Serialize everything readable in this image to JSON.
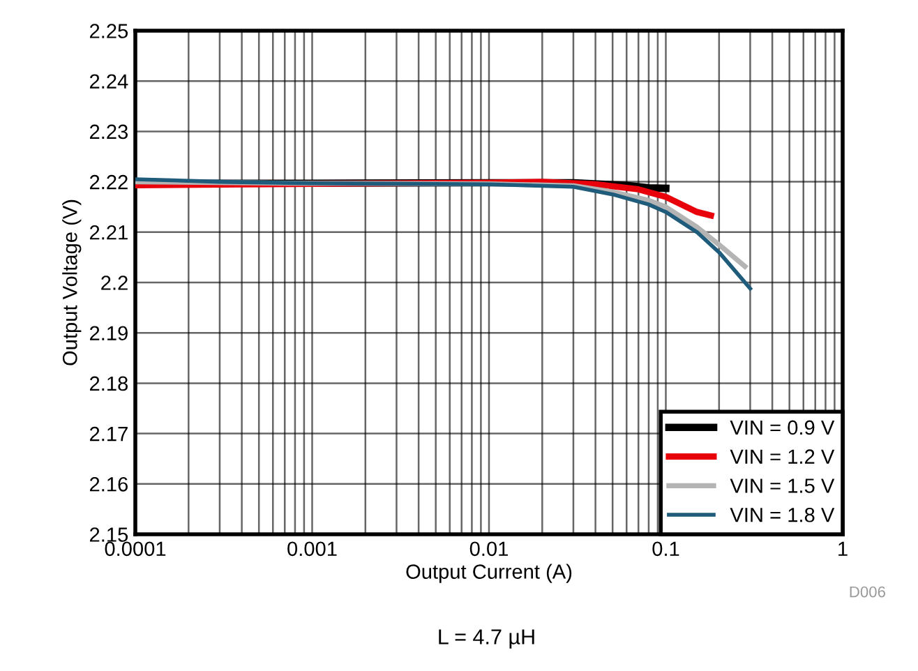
{
  "chart_data": {
    "type": "line",
    "xlabel": "Output Current (A)",
    "ylabel": "Output Voltage (V)",
    "log": "x",
    "grid": true,
    "legend": "bottom right",
    "line_style": "solid",
    "marker": "none",
    "xlim": [
      0.0001,
      1
    ],
    "ylim": [
      2.15,
      2.25
    ],
    "xticks": [
      {
        "value": 0.0001,
        "label": "0.0001"
      },
      {
        "value": 0.0002,
        "label": null
      },
      {
        "value": 0.0003,
        "label": null
      },
      {
        "value": 0.0004,
        "label": null
      },
      {
        "value": 0.0005,
        "label": null
      },
      {
        "value": 0.0006,
        "label": null
      },
      {
        "value": 0.0007,
        "label": null
      },
      {
        "value": 0.0008,
        "label": null
      },
      {
        "value": 0.0009,
        "label": null
      },
      {
        "value": 0.001,
        "label": "0.001"
      },
      {
        "value": 0.002,
        "label": null
      },
      {
        "value": 0.003,
        "label": null
      },
      {
        "value": 0.004,
        "label": null
      },
      {
        "value": 0.005,
        "label": null
      },
      {
        "value": 0.006,
        "label": null
      },
      {
        "value": 0.007,
        "label": null
      },
      {
        "value": 0.008,
        "label": null
      },
      {
        "value": 0.009,
        "label": null
      },
      {
        "value": 0.01,
        "label": "0.01"
      },
      {
        "value": 0.02,
        "label": null
      },
      {
        "value": 0.03,
        "label": null
      },
      {
        "value": 0.04,
        "label": null
      },
      {
        "value": 0.05,
        "label": null
      },
      {
        "value": 0.06,
        "label": null
      },
      {
        "value": 0.07,
        "label": null
      },
      {
        "value": 0.08,
        "label": null
      },
      {
        "value": 0.09,
        "label": null
      },
      {
        "value": 0.1,
        "label": "0.1"
      },
      {
        "value": 0.2,
        "label": null
      },
      {
        "value": 0.3,
        "label": null
      },
      {
        "value": 0.4,
        "label": null
      },
      {
        "value": 0.5,
        "label": null
      },
      {
        "value": 0.6,
        "label": null
      },
      {
        "value": 0.7,
        "label": null
      },
      {
        "value": 0.8,
        "label": null
      },
      {
        "value": 0.9,
        "label": null
      },
      {
        "value": 1,
        "label": "1"
      }
    ],
    "yticks": [
      {
        "value": 2.15,
        "label": "2.15"
      },
      {
        "value": 2.16,
        "label": "2.16"
      },
      {
        "value": 2.17,
        "label": "2.17"
      },
      {
        "value": 2.18,
        "label": "2.18"
      },
      {
        "value": 2.19,
        "label": "2.19"
      },
      {
        "value": 2.2,
        "label": "2.2"
      },
      {
        "value": 2.21,
        "label": "2.21"
      },
      {
        "value": 2.22,
        "label": "2.22"
      },
      {
        "value": 2.23,
        "label": "2.23"
      },
      {
        "value": 2.24,
        "label": "2.24"
      },
      {
        "value": 2.25,
        "label": "2.25"
      }
    ],
    "series": [
      {
        "name": "VIN = 0.9 V",
        "color": "#000000",
        "x": [
          0.0001,
          0.001,
          0.01,
          0.03,
          0.06,
          0.08,
          0.1
        ],
        "values": [
          2.2197,
          2.2197,
          2.2198,
          2.2198,
          2.2193,
          2.2188,
          2.2187
        ]
      },
      {
        "name": "VIN = 1.2 V",
        "color": "#e8000b",
        "x": [
          0.0001,
          0.001,
          0.01,
          0.02,
          0.04,
          0.07,
          0.1,
          0.15,
          0.18
        ],
        "values": [
          2.2193,
          2.2196,
          2.2198,
          2.22,
          2.2195,
          2.2185,
          2.217,
          2.214,
          2.2133
        ]
      },
      {
        "name": "VIN = 1.5 V",
        "color": "#b4b4b4",
        "x": [
          0.0001,
          0.001,
          0.01,
          0.03,
          0.05,
          0.08,
          0.1,
          0.15,
          0.2,
          0.28
        ],
        "values": [
          2.22,
          2.2197,
          2.2196,
          2.2192,
          2.218,
          2.2163,
          2.215,
          2.211,
          2.2075,
          2.2032
        ]
      },
      {
        "name": "VIN = 1.8 V",
        "color": "#1f5b7a",
        "x": [
          0.0001,
          0.0003,
          0.001,
          0.01,
          0.03,
          0.05,
          0.08,
          0.1,
          0.15,
          0.2,
          0.3
        ],
        "values": [
          2.2205,
          2.22,
          2.2197,
          2.2195,
          2.219,
          2.2175,
          2.2155,
          2.214,
          2.21,
          2.206,
          2.1988
        ]
      }
    ],
    "annotations": [
      "D006",
      "L = 4.7 µH"
    ]
  }
}
